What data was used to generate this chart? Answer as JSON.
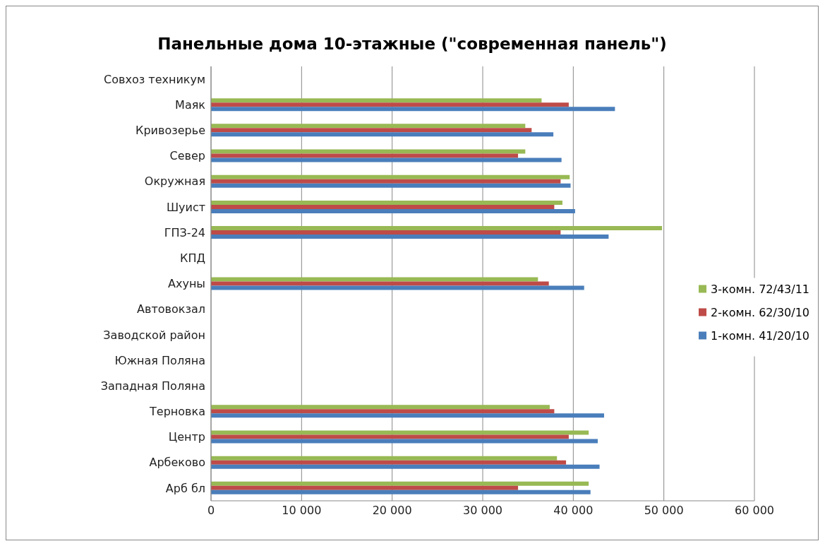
{
  "chart_data": {
    "type": "bar",
    "orientation": "horizontal",
    "title": "Панельные дома 10-этажные (\"современная панель\")",
    "categories": [
      "Совхоз техникум",
      "Маяк",
      "Кривозерье",
      "Север",
      "Окружная",
      "Шуист",
      "ГПЗ-24",
      "КПД",
      "Ахуны",
      "Автовокзал",
      "Заводской район",
      "Южная Поляна",
      "Западная Поляна",
      "Терновка",
      "Центр",
      "Арбеково",
      "Арб бл"
    ],
    "series": [
      {
        "name": "3-комн. 72/43/11",
        "color": "#98b954",
        "values": [
          null,
          36500,
          34700,
          34700,
          39600,
          38800,
          49800,
          null,
          36100,
          null,
          null,
          null,
          null,
          37400,
          41700,
          38200,
          41700
        ]
      },
      {
        "name": "2-комн. 62/30/10",
        "color": "#be4b48",
        "values": [
          null,
          39500,
          35400,
          33900,
          38600,
          37900,
          38600,
          null,
          37300,
          null,
          null,
          null,
          null,
          37900,
          39500,
          39200,
          33900
        ]
      },
      {
        "name": "1-комн. 41/20/10",
        "color": "#4a7ebb",
        "values": [
          null,
          44600,
          37800,
          38700,
          39700,
          40200,
          43900,
          null,
          41200,
          null,
          null,
          null,
          null,
          43400,
          42700,
          42900,
          41900
        ]
      }
    ],
    "xlim": [
      0,
      60000
    ],
    "xticks": [
      0,
      {
        "value": 10000,
        "label": "10 000"
      },
      {
        "value": 20000,
        "label": "20 000"
      },
      {
        "value": 30000,
        "label": "30 000"
      },
      {
        "value": 40000,
        "label": "40 000"
      },
      {
        "value": 50000,
        "label": "50 000"
      },
      {
        "value": 60000,
        "label": "60 000"
      }
    ],
    "grid": "x",
    "legend": "right"
  }
}
